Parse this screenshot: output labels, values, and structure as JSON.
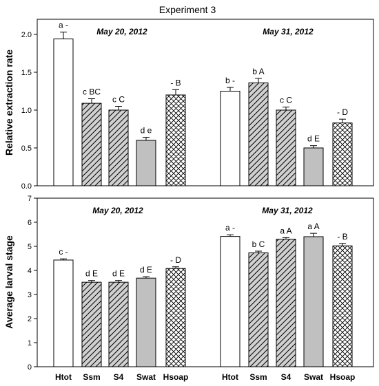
{
  "title": "Experiment 3",
  "chart_data": [
    {
      "type": "bar",
      "ylabel": "Relative extraction rate",
      "ylim": [
        0,
        2.2
      ],
      "yticks": [
        "0.0",
        "0.5",
        "1.0",
        "1.5",
        "2.0"
      ],
      "tick_values": [
        0,
        0.5,
        1.0,
        1.5,
        2.0
      ],
      "categories": [
        "Htot",
        "Ssm",
        "S4",
        "Swat",
        "Hsoap"
      ],
      "groups": [
        {
          "date": "May 20, 2012",
          "values": [
            1.94,
            1.09,
            1.0,
            0.6,
            1.2
          ],
          "errors": [
            0.09,
            0.06,
            0.05,
            0.04,
            0.07
          ],
          "labels": [
            "a -",
            "c BC",
            "c C",
            "d e",
            "- B"
          ]
        },
        {
          "date": "May 31, 2012",
          "values": [
            1.25,
            1.36,
            1.0,
            0.5,
            0.83
          ],
          "errors": [
            0.05,
            0.06,
            0.04,
            0.03,
            0.05
          ],
          "labels": [
            "b -",
            "b A",
            "c C",
            "d E",
            "- D"
          ]
        }
      ]
    },
    {
      "type": "bar",
      "ylabel": "Average larval stage",
      "ylim": [
        0,
        7
      ],
      "yticks": [
        "0",
        "1",
        "2",
        "3",
        "4",
        "5",
        "6",
        "7"
      ],
      "tick_values": [
        0,
        1,
        2,
        3,
        4,
        5,
        6,
        7
      ],
      "categories": [
        "Htot",
        "Ssm",
        "S4",
        "Swat",
        "Hsoap"
      ],
      "groups": [
        {
          "date": "May 20, 2012",
          "values": [
            4.43,
            3.51,
            3.51,
            3.68,
            4.08
          ],
          "errors": [
            0.05,
            0.07,
            0.07,
            0.06,
            0.07
          ],
          "labels": [
            "c -",
            "d E",
            "d E",
            "d E",
            "- D"
          ]
        },
        {
          "date": "May 31, 2012",
          "values": [
            5.41,
            4.73,
            5.3,
            5.4,
            5.02
          ],
          "errors": [
            0.07,
            0.07,
            0.06,
            0.14,
            0.1
          ],
          "labels": [
            "a -",
            "b C",
            "a A",
            "a A",
            "- B"
          ]
        }
      ]
    }
  ],
  "legend_patterns": [
    "white",
    "diagonal-hatch",
    "diagonal-hatch",
    "gray",
    "crosshatch"
  ],
  "colors": {
    "bar_outline": "#000000",
    "swat_fill": "#c0c0c0",
    "hatch_bg": "#d0d0d0"
  }
}
